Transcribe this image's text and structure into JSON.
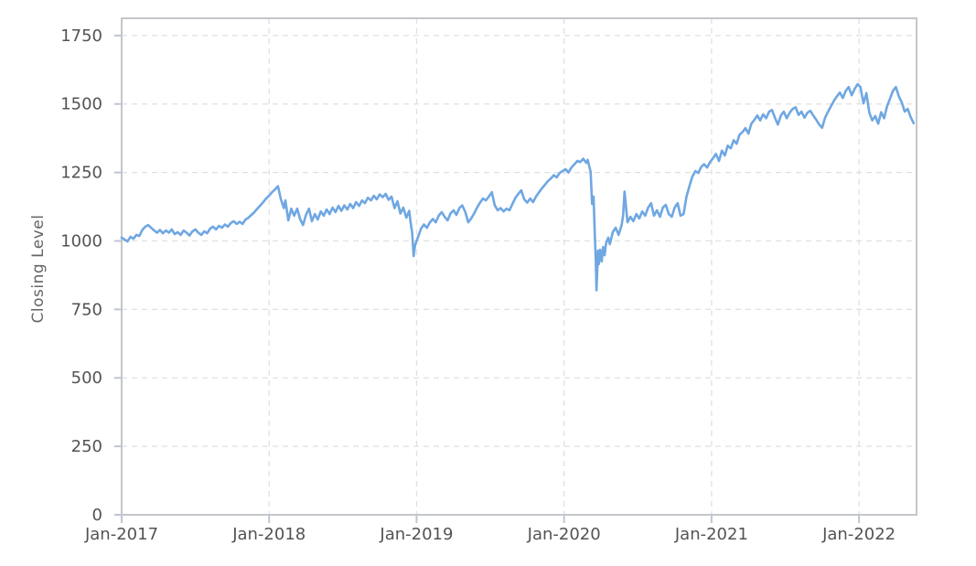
{
  "chart_data": {
    "type": "line",
    "title": "",
    "xlabel": "",
    "ylabel": "Closing Level",
    "x_unit": "years since Jan-2017",
    "xlim": [
      0,
      5.39
    ],
    "ylim": [
      0,
      1813
    ],
    "grid": "dashed-both-axes",
    "legend": "none",
    "colors": {
      "line": "#6fa7e2",
      "grid": "#e0e0e0",
      "frame": "#c5c6ca",
      "tick": "#bcc5d6",
      "tick_label": "#555352",
      "axis_title": "#666564",
      "background": "#ffffff"
    },
    "x_ticks": [
      {
        "t": 0,
        "label": "Jan-2017"
      },
      {
        "t": 1,
        "label": "Jan-2018"
      },
      {
        "t": 2,
        "label": "Jan-2019"
      },
      {
        "t": 3,
        "label": "Jan-2020"
      },
      {
        "t": 4,
        "label": "Jan-2021"
      },
      {
        "t": 5,
        "label": "Jan-2022"
      }
    ],
    "y_ticks": [
      0,
      250,
      500,
      750,
      1000,
      1250,
      1500,
      1750
    ],
    "series": [
      {
        "name": "Closing Level",
        "points": [
          [
            0.0,
            1012
          ],
          [
            0.02,
            1005
          ],
          [
            0.04,
            998
          ],
          [
            0.06,
            1015
          ],
          [
            0.08,
            1008
          ],
          [
            0.1,
            1022
          ],
          [
            0.12,
            1018
          ],
          [
            0.14,
            1040
          ],
          [
            0.16,
            1052
          ],
          [
            0.18,
            1058
          ],
          [
            0.2,
            1048
          ],
          [
            0.22,
            1038
          ],
          [
            0.24,
            1030
          ],
          [
            0.26,
            1040
          ],
          [
            0.28,
            1028
          ],
          [
            0.3,
            1038
          ],
          [
            0.32,
            1030
          ],
          [
            0.34,
            1042
          ],
          [
            0.36,
            1025
          ],
          [
            0.38,
            1032
          ],
          [
            0.4,
            1022
          ],
          [
            0.42,
            1038
          ],
          [
            0.44,
            1030
          ],
          [
            0.46,
            1020
          ],
          [
            0.48,
            1035
          ],
          [
            0.5,
            1042
          ],
          [
            0.52,
            1030
          ],
          [
            0.54,
            1022
          ],
          [
            0.56,
            1035
          ],
          [
            0.58,
            1028
          ],
          [
            0.6,
            1045
          ],
          [
            0.62,
            1052
          ],
          [
            0.64,
            1042
          ],
          [
            0.66,
            1055
          ],
          [
            0.68,
            1048
          ],
          [
            0.7,
            1060
          ],
          [
            0.72,
            1052
          ],
          [
            0.74,
            1065
          ],
          [
            0.76,
            1072
          ],
          [
            0.78,
            1062
          ],
          [
            0.8,
            1070
          ],
          [
            0.82,
            1062
          ],
          [
            0.84,
            1078
          ],
          [
            0.86,
            1085
          ],
          [
            0.88,
            1095
          ],
          [
            0.9,
            1105
          ],
          [
            0.92,
            1118
          ],
          [
            0.94,
            1130
          ],
          [
            0.96,
            1142
          ],
          [
            0.98,
            1155
          ],
          [
            1.0,
            1165
          ],
          [
            1.02,
            1178
          ],
          [
            1.04,
            1188
          ],
          [
            1.06,
            1200
          ],
          [
            1.08,
            1152
          ],
          [
            1.1,
            1120
          ],
          [
            1.11,
            1148
          ],
          [
            1.13,
            1075
          ],
          [
            1.15,
            1118
          ],
          [
            1.17,
            1092
          ],
          [
            1.19,
            1118
          ],
          [
            1.21,
            1080
          ],
          [
            1.23,
            1058
          ],
          [
            1.25,
            1095
          ],
          [
            1.27,
            1118
          ],
          [
            1.29,
            1072
          ],
          [
            1.31,
            1098
          ],
          [
            1.33,
            1078
          ],
          [
            1.35,
            1108
          ],
          [
            1.37,
            1092
          ],
          [
            1.39,
            1115
          ],
          [
            1.41,
            1098
          ],
          [
            1.43,
            1122
          ],
          [
            1.45,
            1105
          ],
          [
            1.47,
            1128
          ],
          [
            1.49,
            1110
          ],
          [
            1.51,
            1130
          ],
          [
            1.53,
            1115
          ],
          [
            1.55,
            1135
          ],
          [
            1.57,
            1120
          ],
          [
            1.59,
            1142
          ],
          [
            1.61,
            1128
          ],
          [
            1.63,
            1148
          ],
          [
            1.65,
            1138
          ],
          [
            1.67,
            1158
          ],
          [
            1.69,
            1148
          ],
          [
            1.71,
            1165
          ],
          [
            1.73,
            1152
          ],
          [
            1.75,
            1170
          ],
          [
            1.77,
            1160
          ],
          [
            1.79,
            1172
          ],
          [
            1.81,
            1150
          ],
          [
            1.83,
            1162
          ],
          [
            1.85,
            1120
          ],
          [
            1.87,
            1145
          ],
          [
            1.89,
            1100
          ],
          [
            1.91,
            1122
          ],
          [
            1.93,
            1085
          ],
          [
            1.95,
            1110
          ],
          [
            1.96,
            1065
          ],
          [
            1.97,
            1030
          ],
          [
            1.98,
            945
          ],
          [
            1.99,
            985
          ],
          [
            2.01,
            1015
          ],
          [
            2.03,
            1045
          ],
          [
            2.05,
            1060
          ],
          [
            2.07,
            1048
          ],
          [
            2.09,
            1068
          ],
          [
            2.11,
            1080
          ],
          [
            2.13,
            1068
          ],
          [
            2.15,
            1092
          ],
          [
            2.17,
            1105
          ],
          [
            2.19,
            1088
          ],
          [
            2.21,
            1075
          ],
          [
            2.23,
            1100
          ],
          [
            2.25,
            1112
          ],
          [
            2.27,
            1095
          ],
          [
            2.29,
            1120
          ],
          [
            2.31,
            1130
          ],
          [
            2.33,
            1105
          ],
          [
            2.35,
            1068
          ],
          [
            2.37,
            1082
          ],
          [
            2.39,
            1100
          ],
          [
            2.41,
            1122
          ],
          [
            2.43,
            1140
          ],
          [
            2.45,
            1155
          ],
          [
            2.47,
            1148
          ],
          [
            2.49,
            1162
          ],
          [
            2.51,
            1178
          ],
          [
            2.53,
            1130
          ],
          [
            2.55,
            1112
          ],
          [
            2.57,
            1120
          ],
          [
            2.59,
            1108
          ],
          [
            2.61,
            1118
          ],
          [
            2.63,
            1112
          ],
          [
            2.65,
            1135
          ],
          [
            2.67,
            1158
          ],
          [
            2.69,
            1172
          ],
          [
            2.71,
            1185
          ],
          [
            2.73,
            1152
          ],
          [
            2.75,
            1140
          ],
          [
            2.77,
            1155
          ],
          [
            2.79,
            1142
          ],
          [
            2.81,
            1162
          ],
          [
            2.83,
            1178
          ],
          [
            2.85,
            1192
          ],
          [
            2.87,
            1205
          ],
          [
            2.89,
            1218
          ],
          [
            2.91,
            1228
          ],
          [
            2.93,
            1240
          ],
          [
            2.95,
            1232
          ],
          [
            2.97,
            1248
          ],
          [
            2.99,
            1255
          ],
          [
            3.01,
            1262
          ],
          [
            3.03,
            1250
          ],
          [
            3.05,
            1268
          ],
          [
            3.07,
            1280
          ],
          [
            3.09,
            1292
          ],
          [
            3.11,
            1288
          ],
          [
            3.13,
            1300
          ],
          [
            3.15,
            1285
          ],
          [
            3.16,
            1296
          ],
          [
            3.18,
            1252
          ],
          [
            3.19,
            1135
          ],
          [
            3.2,
            1162
          ],
          [
            3.21,
            1000
          ],
          [
            3.215,
            935
          ],
          [
            3.22,
            820
          ],
          [
            3.23,
            965
          ],
          [
            3.235,
            915
          ],
          [
            3.245,
            968
          ],
          [
            3.255,
            925
          ],
          [
            3.265,
            978
          ],
          [
            3.275,
            948
          ],
          [
            3.285,
            992
          ],
          [
            3.3,
            1012
          ],
          [
            3.31,
            988
          ],
          [
            3.33,
            1032
          ],
          [
            3.35,
            1048
          ],
          [
            3.37,
            1022
          ],
          [
            3.39,
            1058
          ],
          [
            3.4,
            1092
          ],
          [
            3.41,
            1180
          ],
          [
            3.42,
            1125
          ],
          [
            3.43,
            1068
          ],
          [
            3.45,
            1088
          ],
          [
            3.47,
            1072
          ],
          [
            3.49,
            1098
          ],
          [
            3.51,
            1082
          ],
          [
            3.53,
            1108
          ],
          [
            3.55,
            1092
          ],
          [
            3.57,
            1122
          ],
          [
            3.59,
            1138
          ],
          [
            3.61,
            1092
          ],
          [
            3.63,
            1112
          ],
          [
            3.65,
            1088
          ],
          [
            3.67,
            1122
          ],
          [
            3.69,
            1132
          ],
          [
            3.71,
            1098
          ],
          [
            3.73,
            1088
          ],
          [
            3.75,
            1122
          ],
          [
            3.77,
            1138
          ],
          [
            3.79,
            1092
          ],
          [
            3.81,
            1098
          ],
          [
            3.83,
            1162
          ],
          [
            3.85,
            1200
          ],
          [
            3.87,
            1235
          ],
          [
            3.89,
            1255
          ],
          [
            3.91,
            1248
          ],
          [
            3.93,
            1270
          ],
          [
            3.95,
            1280
          ],
          [
            3.97,
            1268
          ],
          [
            3.99,
            1288
          ],
          [
            4.01,
            1302
          ],
          [
            4.03,
            1318
          ],
          [
            4.05,
            1292
          ],
          [
            4.07,
            1330
          ],
          [
            4.09,
            1312
          ],
          [
            4.11,
            1348
          ],
          [
            4.13,
            1338
          ],
          [
            4.15,
            1368
          ],
          [
            4.17,
            1355
          ],
          [
            4.19,
            1388
          ],
          [
            4.21,
            1398
          ],
          [
            4.23,
            1412
          ],
          [
            4.25,
            1392
          ],
          [
            4.27,
            1428
          ],
          [
            4.29,
            1442
          ],
          [
            4.31,
            1458
          ],
          [
            4.33,
            1440
          ],
          [
            4.35,
            1462
          ],
          [
            4.37,
            1448
          ],
          [
            4.39,
            1472
          ],
          [
            4.41,
            1478
          ],
          [
            4.43,
            1450
          ],
          [
            4.45,
            1425
          ],
          [
            4.47,
            1458
          ],
          [
            4.49,
            1472
          ],
          [
            4.51,
            1448
          ],
          [
            4.53,
            1468
          ],
          [
            4.55,
            1482
          ],
          [
            4.57,
            1488
          ],
          [
            4.59,
            1460
          ],
          [
            4.61,
            1472
          ],
          [
            4.63,
            1450
          ],
          [
            4.65,
            1468
          ],
          [
            4.67,
            1475
          ],
          [
            4.69,
            1458
          ],
          [
            4.71,
            1442
          ],
          [
            4.73,
            1425
          ],
          [
            4.75,
            1413
          ],
          [
            4.77,
            1450
          ],
          [
            4.79,
            1472
          ],
          [
            4.81,
            1492
          ],
          [
            4.83,
            1512
          ],
          [
            4.85,
            1528
          ],
          [
            4.87,
            1542
          ],
          [
            4.89,
            1522
          ],
          [
            4.91,
            1548
          ],
          [
            4.93,
            1562
          ],
          [
            4.95,
            1532
          ],
          [
            4.97,
            1555
          ],
          [
            4.99,
            1572
          ],
          [
            5.01,
            1562
          ],
          [
            5.03,
            1502
          ],
          [
            5.05,
            1540
          ],
          [
            5.07,
            1468
          ],
          [
            5.09,
            1440
          ],
          [
            5.11,
            1456
          ],
          [
            5.13,
            1428
          ],
          [
            5.15,
            1470
          ],
          [
            5.17,
            1448
          ],
          [
            5.19,
            1492
          ],
          [
            5.21,
            1520
          ],
          [
            5.23,
            1548
          ],
          [
            5.25,
            1562
          ],
          [
            5.27,
            1528
          ],
          [
            5.29,
            1505
          ],
          [
            5.31,
            1472
          ],
          [
            5.33,
            1482
          ],
          [
            5.35,
            1452
          ],
          [
            5.37,
            1430
          ]
        ]
      }
    ]
  }
}
